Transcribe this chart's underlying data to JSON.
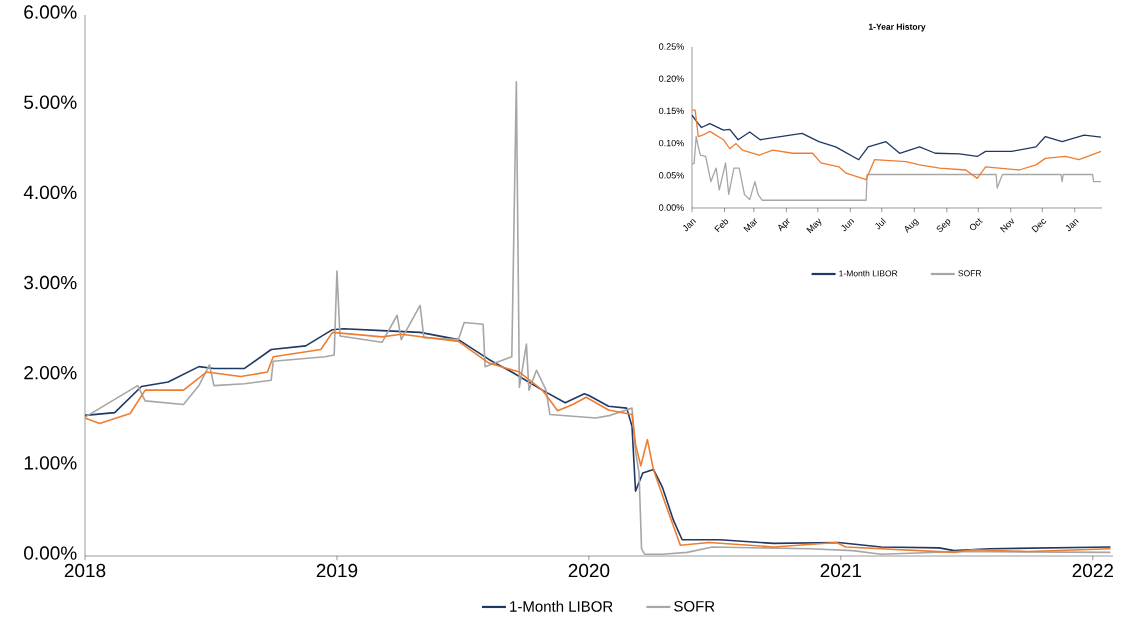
{
  "chart_data": [
    {
      "type": "line",
      "xlim": [
        2018,
        2022.08
      ],
      "xticks": [
        2018,
        2019,
        2020,
        2021,
        2022
      ],
      "ylim": [
        0,
        6
      ],
      "yticks": [
        {
          "value": 0,
          "label": "0.00%"
        },
        {
          "value": 1,
          "label": "1.00%"
        },
        {
          "value": 2,
          "label": "2.00%"
        },
        {
          "value": 3,
          "label": "3.00%"
        },
        {
          "value": 4,
          "label": "4.00%"
        },
        {
          "value": 5,
          "label": "5.00%"
        },
        {
          "value": 6,
          "label": "6.00%"
        }
      ],
      "legend": "bottom",
      "series": [
        {
          "name": "1-Month LIBOR",
          "color": "#1f3864",
          "x": [
            2018.0,
            2018.118,
            2018.224,
            2018.33,
            2018.452,
            2018.512,
            2018.633,
            2018.739,
            2018.876,
            2018.982,
            2019.027,
            2019.179,
            2019.33,
            2019.482,
            2019.603,
            2019.694,
            2019.815,
            2019.906,
            2019.982,
            2020.0,
            2020.078,
            2020.15,
            2020.171,
            2020.185,
            2020.214,
            2020.256,
            2020.292,
            2020.335,
            2020.37,
            2020.52,
            2020.733,
            2020.99,
            2021.16,
            2021.39,
            2021.45,
            2021.59,
            2022.07
          ],
          "values": [
            1.56,
            1.59,
            1.88,
            1.93,
            2.1,
            2.08,
            2.08,
            2.29,
            2.33,
            2.51,
            2.52,
            2.5,
            2.48,
            2.4,
            2.18,
            2.04,
            1.84,
            1.7,
            1.8,
            1.78,
            1.66,
            1.64,
            1.44,
            0.72,
            0.92,
            0.96,
            0.76,
            0.4,
            0.18,
            0.18,
            0.14,
            0.15,
            0.1,
            0.09,
            0.06,
            0.08,
            0.1
          ]
        },
        {
          "name": "SOFR",
          "color": "#a6a6a6",
          "x": [
            2018.0,
            2018.209,
            2018.239,
            2018.391,
            2018.452,
            2018.494,
            2018.512,
            2018.633,
            2018.739,
            2018.747,
            2018.952,
            2018.989,
            2019.0,
            2019.012,
            2019.179,
            2019.239,
            2019.255,
            2019.33,
            2019.345,
            2019.482,
            2019.505,
            2019.58,
            2019.588,
            2019.694,
            2019.712,
            2019.724,
            2019.752,
            2019.762,
            2019.792,
            2019.83,
            2019.845,
            2020.027,
            2020.085,
            2020.171,
            2020.185,
            2020.199,
            2020.209,
            2020.221,
            2020.292,
            2020.39,
            2020.49,
            2020.876,
            2021.047,
            2021.16,
            2021.47,
            2022.07
          ],
          "values": [
            1.54,
            1.89,
            1.72,
            1.68,
            1.89,
            2.12,
            1.89,
            1.91,
            1.95,
            2.16,
            2.21,
            2.23,
            3.16,
            2.44,
            2.37,
            2.67,
            2.4,
            2.78,
            2.42,
            2.4,
            2.59,
            2.57,
            2.1,
            2.21,
            5.26,
            1.87,
            2.35,
            1.84,
            2.06,
            1.84,
            1.57,
            1.53,
            1.56,
            1.64,
            1.16,
            0.92,
            0.08,
            0.02,
            0.02,
            0.04,
            0.1,
            0.08,
            0.06,
            0.02,
            0.05,
            0.04
          ]
        },
        {
          "color": "#ed7d31",
          "x": [
            2018.0,
            2018.058,
            2018.179,
            2018.239,
            2018.391,
            2018.482,
            2018.618,
            2018.724,
            2018.747,
            2018.936,
            2018.982,
            2019.179,
            2019.255,
            2019.482,
            2019.603,
            2019.724,
            2019.815,
            2019.876,
            2019.936,
            2019.989,
            2020.078,
            2020.171,
            2020.185,
            2020.206,
            2020.232,
            2020.256,
            2020.306,
            2020.363,
            2020.477,
            2020.733,
            2020.983,
            2021.019,
            2021.45,
            2021.52,
            2021.74,
            2022.07
          ],
          "values": [
            1.53,
            1.47,
            1.58,
            1.84,
            1.84,
            2.04,
            1.99,
            2.04,
            2.21,
            2.29,
            2.48,
            2.43,
            2.46,
            2.38,
            2.14,
            2.04,
            1.84,
            1.61,
            1.68,
            1.76,
            1.62,
            1.57,
            1.24,
            1.0,
            1.29,
            0.96,
            0.56,
            0.12,
            0.15,
            0.1,
            0.15,
            0.1,
            0.04,
            0.07,
            0.05,
            0.08
          ]
        }
      ]
    },
    {
      "type": "line",
      "title": "1-Year History",
      "xlim": [
        "2021-01-01",
        "2022-01-27"
      ],
      "xticks": [
        {
          "value": "2021-01-01",
          "label": "Jan"
        },
        {
          "value": "2021-02-01",
          "label": "Feb"
        },
        {
          "value": "2021-03-01",
          "label": "Mar"
        },
        {
          "value": "2021-04-01",
          "label": "Apr"
        },
        {
          "value": "2021-05-01",
          "label": "May"
        },
        {
          "value": "2021-06-01",
          "label": "Jun"
        },
        {
          "value": "2021-07-01",
          "label": "Jul"
        },
        {
          "value": "2021-08-01",
          "label": "Aug"
        },
        {
          "value": "2021-09-01",
          "label": "Sep"
        },
        {
          "value": "2021-10-01",
          "label": "Oct"
        },
        {
          "value": "2021-11-01",
          "label": "Nov"
        },
        {
          "value": "2021-12-01",
          "label": "Dec"
        },
        {
          "value": "2022-01-01",
          "label": "Jan"
        }
      ],
      "ylim": [
        0,
        0.25
      ],
      "yticks": [
        {
          "value": 0,
          "label": "0.00%"
        },
        {
          "value": 0.05,
          "label": "0.05%"
        },
        {
          "value": 0.1,
          "label": "0.10%"
        },
        {
          "value": 0.15,
          "label": "0.15%"
        },
        {
          "value": 0.2,
          "label": "0.20%"
        },
        {
          "value": 0.25,
          "label": "0.25%"
        }
      ],
      "legend": "bottom",
      "series": [
        {
          "name": "1-Month LIBOR",
          "color": "#1f3864",
          "x": [
            "2021-01-01",
            "2021-01-07",
            "2021-01-10",
            "2021-01-18",
            "2021-01-31",
            "2021-02-06",
            "2021-02-14",
            "2021-02-25",
            "2021-03-07",
            "2021-03-31",
            "2021-04-16",
            "2021-05-02",
            "2021-05-18",
            "2021-06-09",
            "2021-06-18",
            "2021-07-05",
            "2021-07-18",
            "2021-08-06",
            "2021-08-21",
            "2021-09-13",
            "2021-09-30",
            "2021-10-08",
            "2021-11-02",
            "2021-11-25",
            "2021-12-04",
            "2021-12-20",
            "2022-01-10",
            "2022-01-26"
          ],
          "values": [
            0.144,
            0.131,
            0.125,
            0.131,
            0.121,
            0.122,
            0.106,
            0.118,
            0.106,
            0.112,
            0.116,
            0.103,
            0.095,
            0.075,
            0.095,
            0.103,
            0.085,
            0.095,
            0.085,
            0.084,
            0.08,
            0.088,
            0.088,
            0.095,
            0.111,
            0.103,
            0.113,
            0.11
          ]
        },
        {
          "name": "SOFR",
          "color": "#a6a6a6",
          "x": [
            "2021-01-01",
            "2021-01-03",
            "2021-01-05",
            "2021-01-07",
            "2021-01-09",
            "2021-01-14",
            "2021-01-19",
            "2021-01-24",
            "2021-01-27",
            "2021-02-02",
            "2021-02-05",
            "2021-02-10",
            "2021-02-15",
            "2021-02-20",
            "2021-02-25",
            "2021-03-02",
            "2021-03-05",
            "2021-03-09",
            "2021-06-16",
            "2021-06-17",
            "2021-10-18",
            "2021-10-19",
            "2021-10-24",
            "2021-12-19",
            "2021-12-20",
            "2021-12-21",
            "2022-01-18",
            "2022-01-19",
            "2022-01-26"
          ],
          "values": [
            0.069,
            0.069,
            0.111,
            0.095,
            0.082,
            0.08,
            0.041,
            0.062,
            0.028,
            0.07,
            0.021,
            0.062,
            0.062,
            0.021,
            0.013,
            0.041,
            0.021,
            0.012,
            0.012,
            0.052,
            0.052,
            0.031,
            0.052,
            0.052,
            0.041,
            0.052,
            0.052,
            0.041,
            0.041
          ]
        },
        {
          "color": "#ed7d31",
          "x": [
            "2021-01-01",
            "2021-01-04",
            "2021-01-07",
            "2021-01-11",
            "2021-01-18",
            "2021-01-31",
            "2021-02-06",
            "2021-02-12",
            "2021-02-18",
            "2021-03-06",
            "2021-03-19",
            "2021-04-07",
            "2021-04-26",
            "2021-05-04",
            "2021-05-21",
            "2021-05-28",
            "2021-06-16",
            "2021-06-24",
            "2021-07-24",
            "2021-08-06",
            "2021-08-25",
            "2021-09-19",
            "2021-09-30",
            "2021-10-08",
            "2021-11-09",
            "2021-11-25",
            "2021-12-04",
            "2021-12-23",
            "2022-01-05",
            "2022-01-26"
          ],
          "values": [
            0.152,
            0.152,
            0.111,
            0.113,
            0.119,
            0.106,
            0.092,
            0.1,
            0.09,
            0.082,
            0.09,
            0.085,
            0.085,
            0.07,
            0.064,
            0.054,
            0.044,
            0.075,
            0.072,
            0.067,
            0.062,
            0.059,
            0.046,
            0.064,
            0.059,
            0.067,
            0.077,
            0.08,
            0.075,
            0.088
          ]
        }
      ]
    }
  ]
}
